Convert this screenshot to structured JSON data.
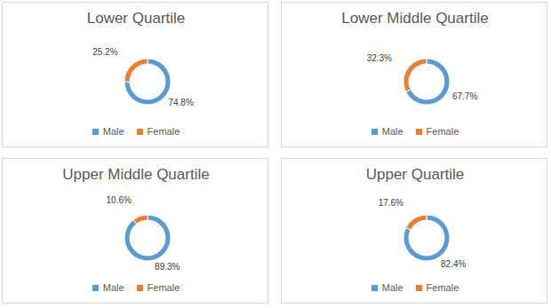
{
  "chart_data": [
    {
      "type": "donut",
      "title": "Lower Quartile",
      "categories": [
        "Male",
        "Female"
      ],
      "values": [
        74.8,
        25.2
      ],
      "value_labels": [
        "74.8%",
        "25.2%"
      ],
      "colors": [
        "#5b9bd5",
        "#ed7d31"
      ],
      "data_labels": true,
      "legend": "bottom"
    },
    {
      "type": "donut",
      "title": "Lower Middle Quartile",
      "categories": [
        "Male",
        "Female"
      ],
      "values": [
        67.7,
        32.3
      ],
      "value_labels": [
        "67.7%",
        "32.3%"
      ],
      "colors": [
        "#5b9bd5",
        "#ed7d31"
      ],
      "data_labels": true,
      "legend": "bottom"
    },
    {
      "type": "donut",
      "title": "Upper Middle Quartile",
      "categories": [
        "Male",
        "Female"
      ],
      "values": [
        89.3,
        10.6
      ],
      "value_labels": [
        "89.3%",
        "10.6%"
      ],
      "colors": [
        "#5b9bd5",
        "#ed7d31"
      ],
      "data_labels": true,
      "legend": "bottom"
    },
    {
      "type": "donut",
      "title": "Upper Quartile",
      "categories": [
        "Male",
        "Female"
      ],
      "values": [
        82.4,
        17.6
      ],
      "value_labels": [
        "82.4%",
        "17.6%"
      ],
      "colors": [
        "#5b9bd5",
        "#ed7d31"
      ],
      "data_labels": true,
      "legend": "bottom"
    }
  ]
}
